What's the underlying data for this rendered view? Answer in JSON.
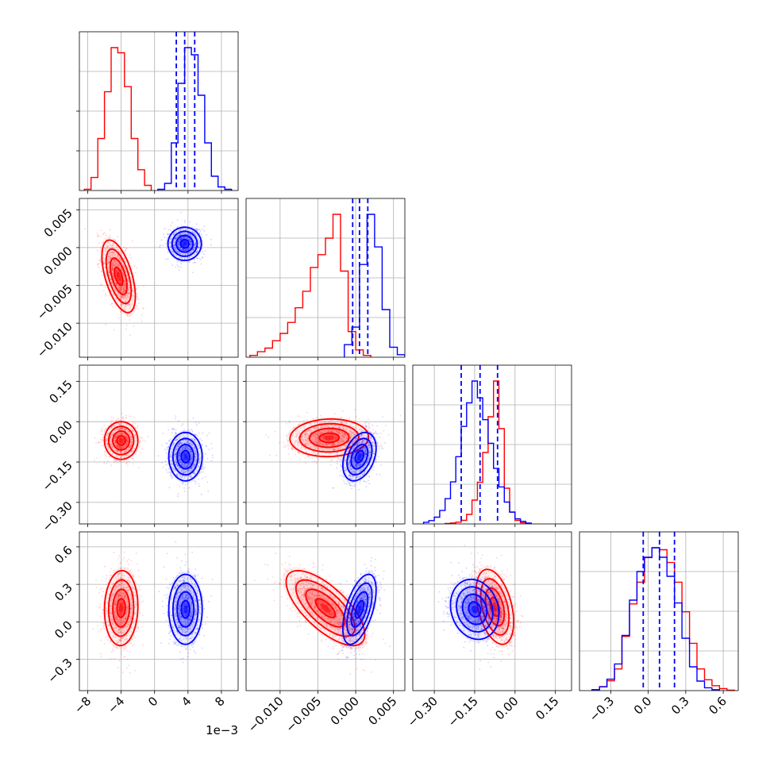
{
  "chart_data": {
    "type": "corner",
    "grid": true,
    "series": [
      {
        "color": "#ff0000",
        "params": [
          {
            "hist": {
              "edges": [
                -8.4,
                -7.6,
                -6.8,
                -6.0,
                -5.2,
                -4.4,
                -3.6,
                -2.8,
                -2.0,
                -1.2,
                -0.4
              ],
              "counts": [
                0.5,
                5,
                20,
                38,
                55,
                53,
                40,
                20,
                8,
                2
              ]
            }
          },
          {
            "hist": {
              "edges": [
                -0.014,
                -0.013,
                -0.012,
                -0.011,
                -0.01,
                -0.009,
                -0.008,
                -0.007,
                -0.006,
                -0.005,
                -0.004,
                -0.003,
                -0.002,
                -0.001,
                0.0,
                0.001,
                0.002
              ],
              "counts": [
                1,
                3,
                5,
                9,
                13,
                19,
                27,
                36,
                49,
                56,
                65,
                78,
                47,
                14,
                4,
                1
              ]
            }
          },
          {
            "hist": {
              "edges": [
                -0.26,
                -0.24,
                -0.22,
                -0.2,
                -0.18,
                -0.16,
                -0.14,
                -0.12,
                -0.1,
                -0.08,
                -0.06,
                -0.04,
                -0.02,
                0.0,
                0.02,
                0.04
              ],
              "counts": [
                0.3,
                0.8,
                1.5,
                3,
                8,
                20,
                35,
                60,
                90,
                120,
                80,
                30,
                10,
                3,
                1
              ]
            }
          },
          {
            "hist": {
              "edges": [
                -0.45,
                -0.39,
                -0.33,
                -0.27,
                -0.21,
                -0.15,
                -0.09,
                -0.03,
                0.03,
                0.09,
                0.15,
                0.21,
                0.27,
                0.33,
                0.39,
                0.45,
                0.51,
                0.57,
                0.63,
                0.69
              ],
              "counts": [
                1,
                4,
                10,
                22,
                55,
                88,
                110,
                135,
                145,
                143,
                130,
                110,
                80,
                48,
                22,
                11,
                5,
                2,
                0.5
              ]
            }
          }
        ],
        "pairs": [
          {
            "row": 1,
            "col": 0,
            "center": [
              -4.3,
              -0.0038
            ],
            "spread": [
              1.0,
              0.0024
            ],
            "rho": -0.55
          },
          {
            "row": 2,
            "col": 0,
            "center": [
              -4.0,
              -0.07
            ],
            "spread": [
              1.0,
              0.035
            ],
            "rho": 0.0
          },
          {
            "row": 2,
            "col": 1,
            "center": [
              -0.0035,
              -0.06
            ],
            "spread": [
              0.0026,
              0.035
            ],
            "rho": 0.05
          },
          {
            "row": 3,
            "col": 0,
            "center": [
              -4.0,
              0.11
            ],
            "spread": [
              1.0,
              0.15
            ],
            "rho": 0.05
          },
          {
            "row": 3,
            "col": 1,
            "center": [
              -0.004,
              0.11
            ],
            "spread": [
              0.0026,
              0.15
            ],
            "rho": -0.7
          },
          {
            "row": 3,
            "col": 2,
            "center": [
              -0.075,
              0.12
            ],
            "spread": [
              0.035,
              0.15
            ],
            "rho": -0.4
          }
        ]
      },
      {
        "color": "#0000ff",
        "params": [
          {
            "hist": {
              "edges": [
                0.4,
                1.2,
                2.0,
                2.8,
                3.6,
                4.4,
                5.2,
                6.0,
                6.8,
                7.6,
                8.4,
                9.2
              ],
              "counts": [
                0.5,
                3,
                20,
                45,
                60,
                57,
                40,
                20,
                6,
                1.5,
                0.5
              ]
            }
          },
          {
            "hist": {
              "edges": [
                -0.0015,
                -0.0005,
                0.0005,
                0.0015,
                0.0025,
                0.0035,
                0.0045,
                0.0055,
                0.0065
              ],
              "counts": [
                5,
                12,
                37,
                57,
                44,
                19,
                4,
                1
              ]
            }
          },
          {
            "hist": {
              "edges": [
                -0.34,
                -0.32,
                -0.3,
                -0.28,
                -0.26,
                -0.24,
                -0.22,
                -0.2,
                -0.18,
                -0.16,
                -0.14,
                -0.12,
                -0.1,
                -0.08,
                -0.06,
                -0.04,
                -0.02,
                0.0,
                0.02,
                0.04,
                0.06
              ],
              "counts": [
                1,
                2,
                4,
                8,
                15,
                25,
                40,
                58,
                72,
                85,
                75,
                62,
                48,
                33,
                22,
                13,
                7,
                3,
                1.5,
                0.5
              ]
            }
          },
          {
            "hist": {
              "edges": [
                -0.45,
                -0.39,
                -0.33,
                -0.27,
                -0.21,
                -0.15,
                -0.09,
                -0.03,
                0.03,
                0.09,
                0.15,
                0.21,
                0.27,
                0.33,
                0.39,
                0.45,
                0.51,
                0.57
              ],
              "counts": [
                1,
                4,
                12,
                28,
                58,
                95,
                125,
                140,
                150,
                140,
                120,
                92,
                55,
                25,
                10,
                3,
                1
              ]
            }
          }
        ],
        "quantiles": [
          [
            2.6,
            3.6,
            4.8
          ],
          [
            -0.0004,
            0.0005,
            0.0016
          ],
          [
            -0.2,
            -0.13,
            -0.065
          ],
          [
            -0.04,
            0.09,
            0.21
          ]
        ],
        "pairs": [
          {
            "row": 1,
            "col": 0,
            "center": [
              3.6,
              0.0005
            ],
            "spread": [
              1.0,
              0.0011
            ],
            "rho": 0.0
          },
          {
            "row": 2,
            "col": 0,
            "center": [
              3.7,
              -0.13
            ],
            "spread": [
              1.0,
              0.045
            ],
            "rho": 0.0
          },
          {
            "row": 2,
            "col": 1,
            "center": [
              0.0005,
              -0.13
            ],
            "spread": [
              0.0011,
              0.045
            ],
            "rho": 0.35
          },
          {
            "row": 3,
            "col": 0,
            "center": [
              3.7,
              0.1
            ],
            "spread": [
              1.0,
              0.14
            ],
            "rho": 0.0
          },
          {
            "row": 3,
            "col": 1,
            "center": [
              0.0005,
              0.1
            ],
            "spread": [
              0.0011,
              0.14
            ],
            "rho": 0.55
          },
          {
            "row": 3,
            "col": 2,
            "center": [
              -0.15,
              0.1
            ],
            "spread": [
              0.045,
              0.12
            ],
            "rho": -0.15
          }
        ]
      }
    ],
    "axes": [
      {
        "range": [
          -9.0,
          10.0
        ],
        "ticks": [
          -8,
          -4,
          0,
          4,
          8
        ],
        "tick_labels": [
          "−8",
          "−4",
          "0",
          "4",
          "8"
        ],
        "offset_text": "1e−3"
      },
      {
        "range": [
          -0.0145,
          0.0065
        ],
        "ticks": [
          -0.01,
          -0.005,
          0.0,
          0.005
        ],
        "tick_labels": [
          "−0.010",
          "−0.005",
          "0.000",
          "0.005"
        ]
      },
      {
        "range": [
          -0.38,
          0.21
        ],
        "ticks": [
          -0.3,
          -0.15,
          0.0,
          0.15
        ],
        "tick_labels": [
          "−0.30",
          "−0.15",
          "0.00",
          "0.15"
        ]
      },
      {
        "range": [
          -0.55,
          0.72
        ],
        "ticks": [
          -0.3,
          0.0,
          0.3,
          0.6
        ],
        "tick_labels": [
          "−0.3",
          "0.0",
          "0.3",
          "0.6"
        ]
      }
    ]
  }
}
